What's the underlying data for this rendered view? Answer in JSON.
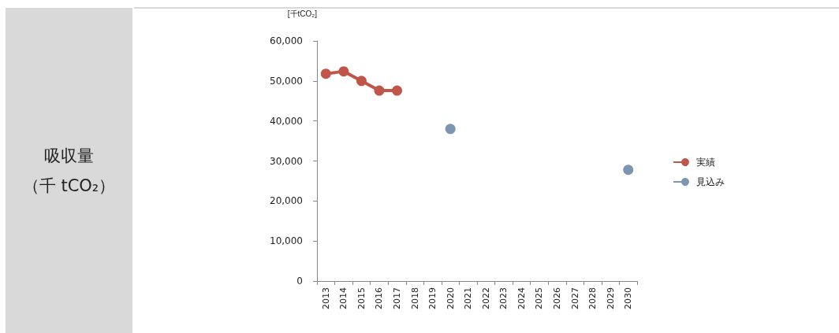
{
  "chart_data": {
    "type": "line",
    "ylabel": "[千tCO₂]",
    "annotations": [
      "吸収量",
      "（千 tCO₂）"
    ],
    "categories": [
      "2013",
      "2014",
      "2015",
      "2016",
      "2017",
      "2018",
      "2019",
      "2020",
      "2021",
      "2022",
      "2023",
      "2024",
      "2025",
      "2026",
      "2027",
      "2028",
      "2029",
      "2030"
    ],
    "series": [
      {
        "name": "実績",
        "color": "#c0564a",
        "values": [
          51800,
          52400,
          50000,
          47600,
          47600,
          null,
          null,
          null,
          null,
          null,
          null,
          null,
          null,
          null,
          null,
          null,
          null,
          null
        ]
      },
      {
        "name": "見込み",
        "type": "scatter",
        "color": "#5b7a9d",
        "values": [
          null,
          null,
          null,
          null,
          null,
          null,
          null,
          38000,
          null,
          null,
          null,
          null,
          null,
          null,
          null,
          null,
          null,
          27800
        ]
      }
    ],
    "ylim": [
      0,
      60000
    ],
    "yticks": [
      {
        "value": 0,
        "label": "0"
      },
      {
        "value": 10000,
        "label": "10,000"
      },
      {
        "value": 20000,
        "label": "20,000"
      },
      {
        "value": 30000,
        "label": "30,000"
      },
      {
        "value": 40000,
        "label": "40,000"
      },
      {
        "value": 50000,
        "label": "50,000"
      },
      {
        "value": 60000,
        "label": "60,000"
      }
    ],
    "grid": false,
    "legend": "right",
    "marker": "circle",
    "line_style": "solid"
  }
}
